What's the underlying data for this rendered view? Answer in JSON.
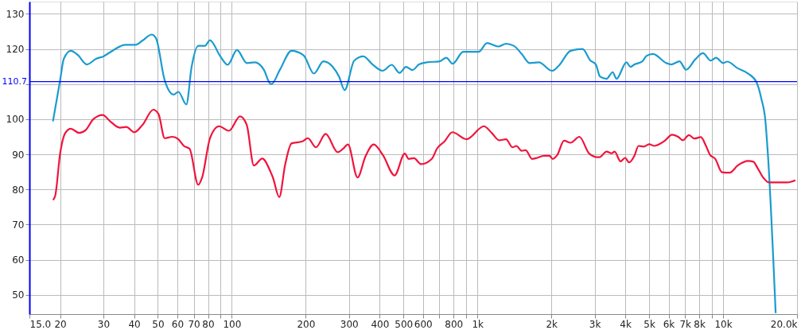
{
  "chart_data": {
    "type": "line",
    "xlim": [
      15,
      20000
    ],
    "ylim": [
      44.5,
      133.5
    ],
    "xticks": [
      {
        "value": 15,
        "label": "15.0"
      },
      20,
      30,
      40,
      50,
      60,
      70,
      80,
      {
        "value": 90,
        "label": null
      },
      100,
      200,
      300,
      400,
      500,
      600,
      {
        "value": 700,
        "label": null
      },
      800,
      {
        "value": 900,
        "label": null
      },
      {
        "value": 1000,
        "label": "1k"
      },
      {
        "value": 2000,
        "label": "2k"
      },
      {
        "value": 3000,
        "label": "3k"
      },
      {
        "value": 4000,
        "label": "4k"
      },
      {
        "value": 5000,
        "label": "5k"
      },
      {
        "value": 6000,
        "label": "6k"
      },
      {
        "value": 7000,
        "label": "7k"
      },
      {
        "value": 8000,
        "label": "8k"
      },
      {
        "value": 9000,
        "label": null
      },
      {
        "value": 10000,
        "label": "10k"
      },
      {
        "value": 20000,
        "label": "20.0k"
      }
    ],
    "yticks": [
      50,
      60,
      70,
      80,
      90,
      100,
      {
        "value": 110,
        "label": null
      },
      120,
      130
    ],
    "log": "x",
    "grid": true,
    "line_style": "solid",
    "marker": "none",
    "ref_lines": [
      {
        "axis": "y",
        "value": 110.7,
        "label": "110.7",
        "color": "#0000ff"
      }
    ],
    "series": [
      {
        "color": "#1a9bcf",
        "x": [
          18.7,
          20,
          20.7,
          22.1,
          23.6,
          25.7,
          28,
          30,
          33,
          36.8,
          40.6,
          43.3,
          47.2,
          49.1,
          53.3,
          58,
          60.6,
          65.3,
          68.6,
          73,
          77.7,
          81.5,
          89.8,
          96.2,
          105,
          115,
          124,
          135,
          143,
          145,
          157,
          175,
          196,
          216,
          236,
          257,
          273,
          288,
          315,
          343,
          374,
          411,
          448,
          482,
          512,
          544,
          578,
          622,
          702,
          746,
          793,
          875,
          1012,
          1094,
          1215,
          1307,
          1406,
          1514,
          1630,
          1778,
          2013,
          2141,
          2395,
          2678,
          2886,
          3034,
          3152,
          3354,
          3553,
          3681,
          4042,
          4198,
          4357,
          4693,
          4873,
          5186,
          5869,
          6169,
          6644,
          7070,
          7719,
          8276,
          8914,
          9365,
          10014,
          10394,
          11469,
          12652,
          13688,
          14308,
          14850,
          15215,
          16370
        ],
        "values": [
          99.4,
          111.1,
          117.2,
          119.5,
          118.3,
          115.6,
          117.2,
          117.9,
          119.7,
          121.2,
          121.2,
          122.4,
          124.1,
          123.1,
          111.1,
          107.0,
          107.8,
          104.2,
          114.9,
          120.9,
          120.9,
          122.5,
          117.9,
          115.5,
          119.7,
          116.0,
          116.2,
          114.1,
          110.2,
          110.0,
          114.1,
          119.5,
          118.2,
          113.0,
          116.5,
          115.0,
          112.2,
          108.3,
          116.7,
          117.9,
          115.6,
          113.8,
          115.5,
          113.2,
          114.9,
          114.0,
          115.6,
          116.2,
          116.5,
          117.5,
          115.8,
          119.2,
          119.2,
          121.7,
          120.7,
          121.5,
          120.9,
          118.6,
          116.0,
          116.2,
          113.8,
          115.2,
          119.5,
          120.0,
          116.7,
          115.6,
          112.2,
          111.5,
          113.4,
          111.5,
          116.2,
          114.9,
          115.6,
          116.5,
          118.0,
          118.6,
          116.0,
          115.6,
          116.5,
          114.1,
          117.1,
          118.8,
          116.7,
          117.5,
          116.0,
          116.4,
          114.5,
          113.0,
          110.5,
          105.9,
          99.9,
          90.2,
          44.8
        ]
      },
      {
        "color": "#f0143c",
        "x": [
          18.7,
          19.1,
          20,
          21,
          22.1,
          23.9,
          25.4,
          27.3,
          29.8,
          32.1,
          35,
          37.2,
          40.1,
          43.3,
          47.9,
          50.3,
          53.3,
          57.3,
          60.6,
          63.8,
          67.3,
          73,
          75.7,
          81.5,
          88.7,
          97.3,
          108,
          115,
          123,
          133,
          144,
          147,
          156,
          165,
          175,
          194,
          204,
          220,
          241,
          270,
          283,
          297,
          325,
          350,
          378,
          412,
          460,
          506,
          525,
          551,
          590,
          652,
          684,
          735,
          790,
          902,
          1063,
          1143,
          1228,
          1307,
          1390,
          1441,
          1514,
          1572,
          1668,
          1751,
          1868,
          1964,
          2024,
          2113,
          2252,
          2395,
          2600,
          2850,
          3072,
          3140,
          3354,
          3525,
          3616,
          3824,
          3989,
          4146,
          4357,
          4524,
          4755,
          5000,
          5250,
          5385,
          5797,
          6200,
          6563,
          6856,
          7263,
          7635,
          8118,
          8520,
          8854,
          9296,
          9884,
          10260,
          10649,
          11469,
          12652,
          13280,
          13790,
          14490,
          15390,
          18270,
          19700
        ],
        "values": [
          77.0,
          78.2,
          90.2,
          96.1,
          97.3,
          96.1,
          96.9,
          100.0,
          101.2,
          99.3,
          97.6,
          97.8,
          96.3,
          98.4,
          102.7,
          101.5,
          94.6,
          95.0,
          94.3,
          92.4,
          91.6,
          81.3,
          83.4,
          94.6,
          98.0,
          96.7,
          100.8,
          98.4,
          86.8,
          88.8,
          84.9,
          83.4,
          77.8,
          87.2,
          93.1,
          93.7,
          94.6,
          92.0,
          95.8,
          90.6,
          91.5,
          92.8,
          83.4,
          89.4,
          92.8,
          89.8,
          84.0,
          90.2,
          88.7,
          88.9,
          87.2,
          88.7,
          91.6,
          93.7,
          96.3,
          94.3,
          98.0,
          96.1,
          94.0,
          94.3,
          92.0,
          92.4,
          91.0,
          91.2,
          88.7,
          89.0,
          89.6,
          89.6,
          88.7,
          89.8,
          93.9,
          93.3,
          95.0,
          90.2,
          89.2,
          89.2,
          90.8,
          90.3,
          90.8,
          88.0,
          89.0,
          87.7,
          89.6,
          92.4,
          92.2,
          92.9,
          92.4,
          92.6,
          93.9,
          95.6,
          95.0,
          94.0,
          95.5,
          94.5,
          94.9,
          92.4,
          89.8,
          88.7,
          84.9,
          84.8,
          84.8,
          86.8,
          88.1,
          87.9,
          86.2,
          83.6,
          82.0,
          82.0,
          82.6
        ]
      }
    ]
  }
}
